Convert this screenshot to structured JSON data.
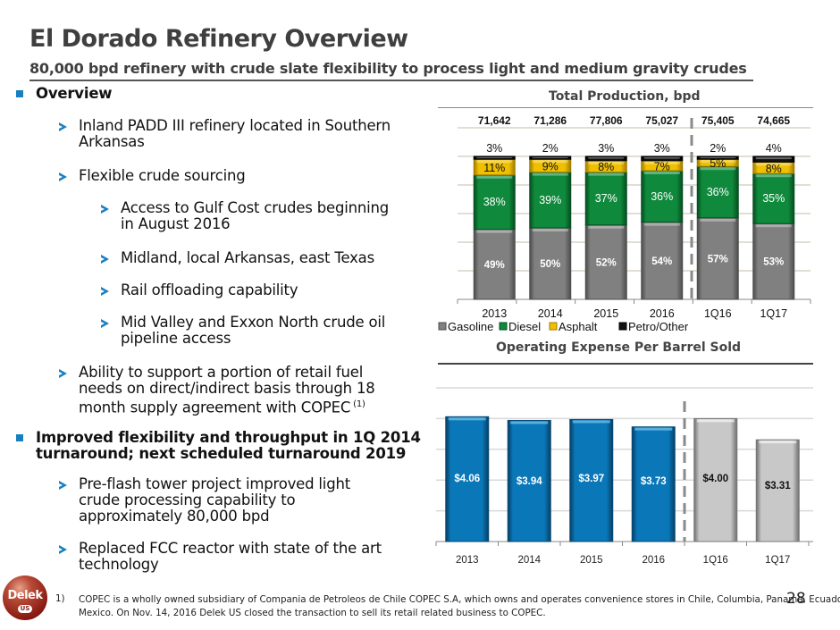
{
  "header": {
    "title": "El Dorado Refinery Overview",
    "subtitle": "80,000 bpd refinery with crude slate flexibility to process light and medium gravity crudes"
  },
  "bullets": [
    {
      "level": 0,
      "text": "Overview"
    },
    {
      "level": 1,
      "lines": [
        "Inland PADD III refinery located in Southern",
        "Arkansas"
      ]
    },
    {
      "level": 1,
      "lines": [
        "Flexible crude sourcing"
      ]
    },
    {
      "level": 2,
      "lines": [
        "Access to Gulf Cost crudes beginning",
        "in August 2016"
      ]
    },
    {
      "level": 2,
      "lines": [
        "Midland, local Arkansas, east Texas"
      ]
    },
    {
      "level": 2,
      "lines": [
        "Rail offloading capability"
      ]
    },
    {
      "level": 2,
      "lines": [
        "Mid Valley and Exxon North crude oil",
        "pipeline access"
      ]
    },
    {
      "level": 1,
      "lines": [
        "Ability to support a portion of retail fuel",
        "needs on direct/indirect basis through 18",
        "month supply agreement with COPEC"
      ],
      "superscript": "(1)"
    },
    {
      "level": 0,
      "lines": [
        "Improved flexibility and throughput in 1Q 2014",
        "turnaround; next scheduled turnaround 2019"
      ]
    },
    {
      "level": 1,
      "lines": [
        "Pre-flash tower project improved light",
        "crude processing capability to",
        "approximately 80,000 bpd"
      ]
    },
    {
      "level": 1,
      "lines": [
        "Replaced FCC reactor with state of the art",
        "technology"
      ]
    }
  ],
  "footnote": {
    "number": "1)",
    "lines": [
      "COPEC is a wholly owned subsidiary of Compania de Petroleos de Chile COPEC S.A, which owns and operates convenience stores in Chile, Columbia, Panama, Ecuador, Peru and",
      "Mexico. On Nov. 14, 2016 Delek US closed the transaction to sell its retail related business to COPEC."
    ]
  },
  "page_number": "28",
  "logo": {
    "text": "Delek",
    "sub": "US"
  },
  "colors": {
    "accent_blue": "#1a7fc1",
    "gasoline": "#808080",
    "diesel": "#0f8a3c",
    "asphalt": "#f0c000",
    "petro_other": "#111111",
    "opex_blue": "#0a77b8",
    "opex_gray": "#c8c8c8"
  },
  "chart_data": [
    {
      "type": "bar",
      "stacked": true,
      "title": "Total Production, bpd",
      "categories": [
        "2013",
        "2014",
        "2015",
        "2016",
        "1Q16",
        "1Q17"
      ],
      "totals": [
        "71,642",
        "71,286",
        "77,806",
        "75,027",
        "75,405",
        "74,665"
      ],
      "series": [
        {
          "name": "Gasoline",
          "values": [
            49,
            50,
            52,
            54,
            57,
            53
          ],
          "labels": [
            "49%",
            "50%",
            "52%",
            "54%",
            "57%",
            "53%"
          ]
        },
        {
          "name": "Diesel",
          "values": [
            38,
            39,
            37,
            36,
            36,
            35
          ],
          "labels": [
            "38%",
            "39%",
            "37%",
            "36%",
            "36%",
            "35%"
          ]
        },
        {
          "name": "Asphalt",
          "values": [
            11,
            9,
            8,
            7,
            5,
            8
          ],
          "labels": [
            "11%",
            "9%",
            "8%",
            "7%",
            "5%",
            "8%"
          ]
        },
        {
          "name": "Petro/Other",
          "values": [
            3,
            2,
            3,
            3,
            2,
            4
          ],
          "labels": [
            "3%",
            "2%",
            "3%",
            "3%",
            "2%",
            "4%"
          ]
        }
      ],
      "ylim": [
        0,
        100
      ],
      "grid": true,
      "legend": "bottom",
      "divider_after": "2016"
    },
    {
      "type": "bar",
      "title": "Operating Expense Per Barrel Sold",
      "categories": [
        "2013",
        "2014",
        "2015",
        "2016",
        "1Q16",
        "1Q17"
      ],
      "values": [
        4.06,
        3.94,
        3.97,
        3.73,
        4.0,
        3.31
      ],
      "labels": [
        "$4.06",
        "$3.94",
        "$3.97",
        "$3.73",
        "$4.00",
        "$3.31"
      ],
      "ylim": [
        0,
        5
      ],
      "grid": true,
      "divider_after": "2016"
    }
  ]
}
